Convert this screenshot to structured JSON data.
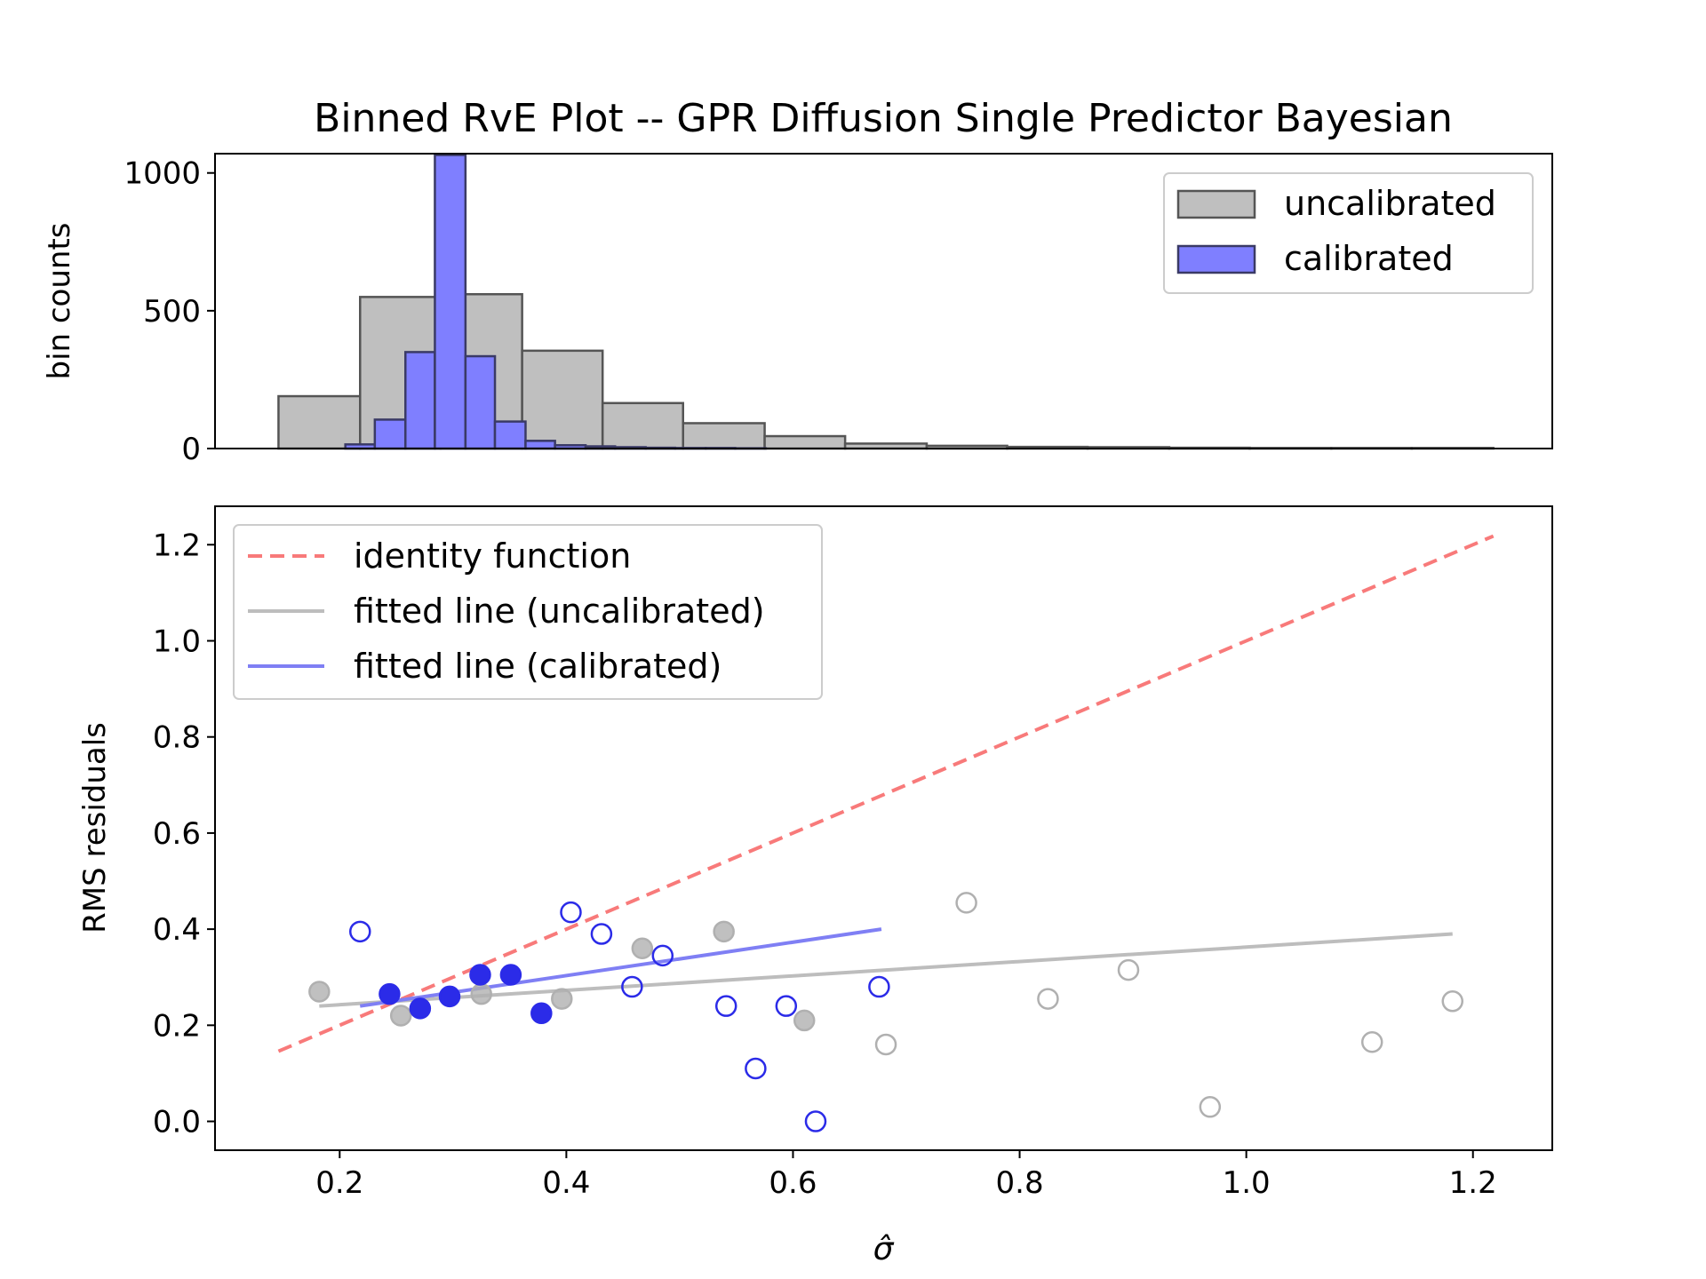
{
  "title": "Binned RvE Plot -- GPR Diffusion Single Predictor Bayesian",
  "colors": {
    "uncalibrated_fill": "#bfbfbf",
    "uncalibrated_edge": "#555555",
    "calibrated_fill": "#7f7fff",
    "calibrated_edge": "#3a3a66",
    "identity": "#f87a7a",
    "fit_uncal": "#bdbdbd",
    "fit_cal": "#7f7ff4",
    "point_uncal": "#b0b0b0",
    "point_cal": "#2b2be8"
  },
  "chart_data": [
    {
      "type": "bar",
      "panel": "histogram",
      "ylabel": "bin counts",
      "xlim": [
        0.09,
        1.27
      ],
      "ylim": [
        0,
        1070
      ],
      "yticks": [
        0,
        500,
        1000
      ],
      "legend": {
        "placement": "top-right",
        "entries": [
          "uncalibrated",
          "calibrated"
        ]
      },
      "series": [
        {
          "name": "uncalibrated",
          "bins": [
            [
              0.146,
              0.218,
              190
            ],
            [
              0.218,
              0.289,
              550
            ],
            [
              0.289,
              0.361,
              560
            ],
            [
              0.361,
              0.432,
              355
            ],
            [
              0.432,
              0.503,
              165
            ],
            [
              0.503,
              0.575,
              92
            ],
            [
              0.575,
              0.646,
              45
            ],
            [
              0.646,
              0.718,
              18
            ],
            [
              0.718,
              0.789,
              10
            ],
            [
              0.789,
              0.86,
              6
            ],
            [
              0.86,
              0.932,
              5
            ],
            [
              0.932,
              1.003,
              3
            ],
            [
              1.003,
              1.075,
              2
            ],
            [
              1.075,
              1.146,
              2
            ],
            [
              1.146,
              1.218,
              2
            ]
          ]
        },
        {
          "name": "calibrated",
          "bins": [
            [
              0.205,
              0.231,
              15
            ],
            [
              0.231,
              0.258,
              105
            ],
            [
              0.258,
              0.284,
              350
            ],
            [
              0.284,
              0.311,
              1065
            ],
            [
              0.311,
              0.337,
              335
            ],
            [
              0.337,
              0.364,
              98
            ],
            [
              0.364,
              0.39,
              28
            ],
            [
              0.39,
              0.417,
              12
            ],
            [
              0.417,
              0.443,
              8
            ],
            [
              0.443,
              0.47,
              5
            ],
            [
              0.47,
              0.496,
              3
            ],
            [
              0.496,
              0.523,
              2
            ],
            [
              0.523,
              0.549,
              2
            ],
            [
              0.549,
              0.576,
              1
            ]
          ]
        }
      ]
    },
    {
      "type": "scatter",
      "panel": "rve",
      "xlabel": "σ̂",
      "ylabel": "RMS residuals",
      "xlim": [
        0.09,
        1.27
      ],
      "ylim": [
        -0.06,
        1.28
      ],
      "xticks": [
        "0.2",
        "0.4",
        "0.6",
        "0.8",
        "1.0",
        "1.2"
      ],
      "yticks": [
        "0.0",
        "0.2",
        "0.4",
        "0.6",
        "0.8",
        "1.0",
        "1.2"
      ],
      "legend": {
        "placement": "top-left",
        "entries": [
          "identity function",
          "fitted line (uncalibrated)",
          "fitted line (calibrated)"
        ]
      },
      "lines": [
        {
          "name": "identity function",
          "x": [
            0.146,
            1.218
          ],
          "y": [
            0.146,
            1.218
          ],
          "style": "dashed"
        },
        {
          "name": "fitted line (uncalibrated)",
          "x": [
            0.182,
            1.182
          ],
          "y": [
            0.24,
            0.39
          ],
          "style": "solid"
        },
        {
          "name": "fitted line (calibrated)",
          "x": [
            0.218,
            0.678
          ],
          "y": [
            0.24,
            0.4
          ],
          "style": "solid"
        }
      ],
      "points": [
        {
          "series": "uncalibrated",
          "filled": true,
          "x": [
            0.182,
            0.254,
            0.325,
            0.396,
            0.467,
            0.539,
            0.61
          ],
          "y": [
            0.27,
            0.22,
            0.265,
            0.255,
            0.36,
            0.395,
            0.21
          ]
        },
        {
          "series": "uncalibrated",
          "filled": false,
          "x": [
            0.682,
            0.753,
            0.825,
            0.896,
            0.968,
            1.111,
            1.182
          ],
          "y": [
            0.16,
            0.455,
            0.255,
            0.315,
            0.03,
            0.165,
            0.25
          ]
        },
        {
          "series": "calibrated",
          "filled": true,
          "x": [
            0.244,
            0.271,
            0.297,
            0.324,
            0.351,
            0.378
          ],
          "y": [
            0.265,
            0.235,
            0.26,
            0.305,
            0.305,
            0.225
          ]
        },
        {
          "series": "calibrated",
          "filled": false,
          "x": [
            0.218,
            0.404,
            0.431,
            0.458,
            0.485,
            0.541,
            0.567,
            0.594,
            0.62,
            0.676
          ],
          "y": [
            0.395,
            0.435,
            0.39,
            0.28,
            0.345,
            0.24,
            0.11,
            0.24,
            0.0,
            0.28
          ]
        }
      ]
    }
  ]
}
